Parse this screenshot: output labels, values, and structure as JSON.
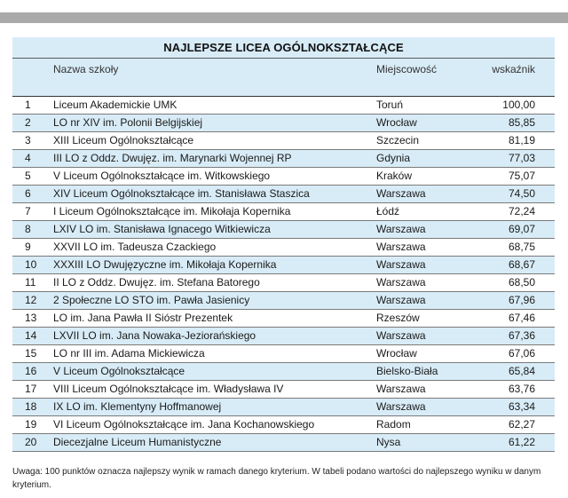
{
  "title": "NAJLEPSZE LICEA OGÓLNOKSZTAŁCĄCE",
  "columns": {
    "name": "Nazwa szkoły",
    "city": "Miejscowość",
    "score": "wskaźnik"
  },
  "rows": [
    {
      "rank": "1",
      "school": "Liceum Akademickie UMK",
      "city": "Toruń",
      "score": "100,00"
    },
    {
      "rank": "2",
      "school": "LO nr XIV im. Polonii Belgijskiej",
      "city": "Wrocław",
      "score": "85,85"
    },
    {
      "rank": "3",
      "school": "XIII Liceum Ogólnokształcące",
      "city": "Szczecin",
      "score": "81,19"
    },
    {
      "rank": "4",
      "school": "III LO z Oddz. Dwujęz. im. Marynarki Wojennej RP",
      "city": "Gdynia",
      "score": "77,03"
    },
    {
      "rank": "5",
      "school": "V Liceum Ogólnokształcące im. Witkowskiego",
      "city": "Kraków",
      "score": "75,07"
    },
    {
      "rank": "6",
      "school": "XIV Liceum Ogólnokształcące im. Stanisława Staszica",
      "city": "Warszawa",
      "score": "74,50"
    },
    {
      "rank": "7",
      "school": "I Liceum Ogólnokształcące im. Mikołaja Kopernika",
      "city": "Łódź",
      "score": "72,24"
    },
    {
      "rank": "8",
      "school": "LXIV LO im. Stanisława Ignacego Witkiewicza",
      "city": "Warszawa",
      "score": "69,07"
    },
    {
      "rank": "9",
      "school": "XXVII LO im. Tadeusza Czackiego",
      "city": "Warszawa",
      "score": "68,75"
    },
    {
      "rank": "10",
      "school": "XXXIII LO Dwujęzyczne im. Mikołaja Kopernika",
      "city": "Warszawa",
      "score": "68,67"
    },
    {
      "rank": "11",
      "school": "II LO z Oddz. Dwujęz. im. Stefana Batorego",
      "city": "Warszawa",
      "score": "68,50"
    },
    {
      "rank": "12",
      "school": "2 Społeczne LO STO im. Pawła Jasienicy",
      "city": "Warszawa",
      "score": "67,96"
    },
    {
      "rank": "13",
      "school": "LO im. Jana Pawła II Sióstr Prezentek",
      "city": "Rzeszów",
      "score": "67,46"
    },
    {
      "rank": "14",
      "school": "LXVII LO im. Jana Nowaka-Jeziorańskiego",
      "city": "Warszawa",
      "score": "67,36"
    },
    {
      "rank": "15",
      "school": "LO nr III im. Adama Mickiewicza",
      "city": "Wrocław",
      "score": "67,06"
    },
    {
      "rank": "16",
      "school": "V Liceum Ogólnokształcące",
      "city": "Bielsko-Biała",
      "score": "65,84"
    },
    {
      "rank": "17",
      "school": "VIII Liceum Ogólnokształcące im. Władysława IV",
      "city": "Warszawa",
      "score": "63,76"
    },
    {
      "rank": "18",
      "school": "IX LO im. Klementyny Hoffmanowej",
      "city": "Warszawa",
      "score": "63,34"
    },
    {
      "rank": "19",
      "school": "VI Liceum Ogólnokształcące im. Jana Kochanowskiego",
      "city": "Radom",
      "score": "62,27"
    },
    {
      "rank": "20",
      "school": "Diecezjalne Liceum Humanistyczne",
      "city": "Nysa",
      "score": "61,22"
    }
  ],
  "note": "Uwaga: 100 punktów oznacza najlepszy wynik w ramach danego kryterium. W tabeli podano wartości do najlepszego wyniku w danym kryterium."
}
